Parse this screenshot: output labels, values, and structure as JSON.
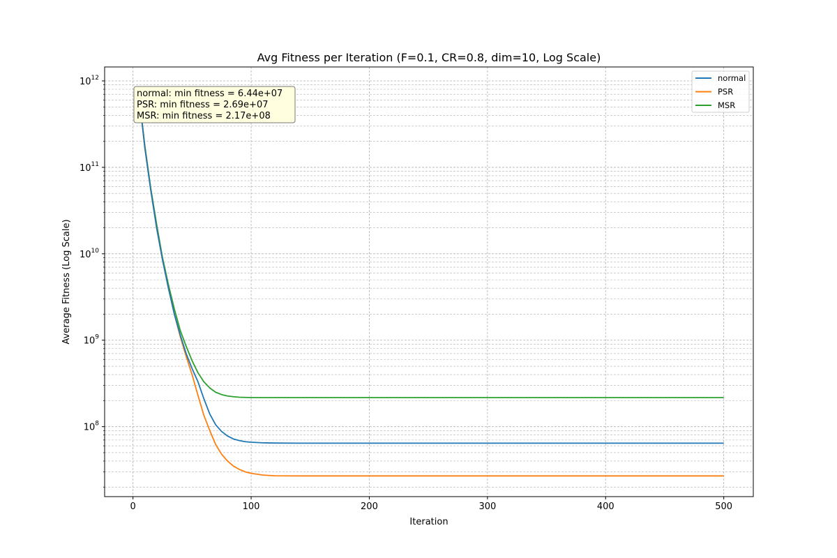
{
  "chart_data": {
    "type": "line",
    "title": "Avg Fitness per Iteration (F=0.1, CR=0.8, dim=10, Log Scale)",
    "xlabel": "Iteration",
    "ylabel": "Average Fitness (Log Scale)",
    "xlim": [
      -24,
      525
    ],
    "ylim": [
      15500000,
      1450000000000
    ],
    "yscale": "log",
    "grid": true,
    "legend_position": "top-right",
    "x_ticks": [
      0,
      100,
      200,
      300,
      400,
      500
    ],
    "y_ticks": [
      {
        "value": 100000000,
        "base": "10",
        "exp": "8"
      },
      {
        "value": 1000000000,
        "base": "10",
        "exp": "9"
      },
      {
        "value": 10000000000,
        "base": "10",
        "exp": "10"
      },
      {
        "value": 100000000000,
        "base": "10",
        "exp": "11"
      },
      {
        "value": 1000000000000,
        "base": "10",
        "exp": "12"
      }
    ],
    "series": [
      {
        "name": "normal",
        "color": "#1f77b4",
        "points": [
          [
            5,
            700000000000
          ],
          [
            10,
            170000000000
          ],
          [
            15,
            55000000000
          ],
          [
            20,
            20000000000
          ],
          [
            25,
            8500000000
          ],
          [
            30,
            4000000000
          ],
          [
            35,
            2000000000
          ],
          [
            40,
            1150000000
          ],
          [
            45,
            700000000
          ],
          [
            50,
            470000000
          ],
          [
            55,
            330000000
          ],
          [
            60,
            210000000
          ],
          [
            65,
            140000000
          ],
          [
            70,
            105000000
          ],
          [
            75,
            88000000
          ],
          [
            80,
            78000000
          ],
          [
            85,
            72000000
          ],
          [
            90,
            69000000
          ],
          [
            95,
            67000000
          ],
          [
            100,
            66000000
          ],
          [
            110,
            65000000
          ],
          [
            120,
            64600000
          ],
          [
            140,
            64400000
          ],
          [
            200,
            64400000
          ],
          [
            300,
            64400000
          ],
          [
            400,
            64400000
          ],
          [
            500,
            64400000
          ]
        ]
      },
      {
        "name": "PSR",
        "color": "#ff7f0e",
        "points": [
          [
            5,
            700000000000
          ],
          [
            10,
            170000000000
          ],
          [
            15,
            55000000000
          ],
          [
            20,
            20000000000
          ],
          [
            25,
            8500000000
          ],
          [
            30,
            4000000000
          ],
          [
            35,
            2000000000
          ],
          [
            40,
            1100000000
          ],
          [
            45,
            650000000
          ],
          [
            50,
            400000000
          ],
          [
            55,
            230000000
          ],
          [
            60,
            135000000
          ],
          [
            65,
            90000000
          ],
          [
            70,
            62000000
          ],
          [
            75,
            48000000
          ],
          [
            80,
            40000000
          ],
          [
            85,
            35000000
          ],
          [
            90,
            32000000
          ],
          [
            95,
            30000000
          ],
          [
            100,
            28800000
          ],
          [
            110,
            27500000
          ],
          [
            120,
            27000000
          ],
          [
            140,
            26900000
          ],
          [
            200,
            26900000
          ],
          [
            300,
            26900000
          ],
          [
            400,
            26900000
          ],
          [
            500,
            26900000
          ]
        ]
      },
      {
        "name": "MSR",
        "color": "#2ca02c",
        "points": [
          [
            5,
            700000000000
          ],
          [
            10,
            180000000000
          ],
          [
            15,
            58000000000
          ],
          [
            20,
            22000000000
          ],
          [
            25,
            9000000000
          ],
          [
            30,
            4400000000
          ],
          [
            35,
            2300000000
          ],
          [
            40,
            1300000000
          ],
          [
            45,
            850000000
          ],
          [
            50,
            580000000
          ],
          [
            55,
            420000000
          ],
          [
            60,
            330000000
          ],
          [
            65,
            280000000
          ],
          [
            70,
            250000000
          ],
          [
            75,
            235000000
          ],
          [
            80,
            226000000
          ],
          [
            85,
            222000000
          ],
          [
            90,
            219000000
          ],
          [
            100,
            217000000
          ],
          [
            120,
            217000000
          ],
          [
            200,
            217000000
          ],
          [
            300,
            217000000
          ],
          [
            400,
            217000000
          ],
          [
            500,
            217000000
          ]
        ]
      }
    ],
    "annotation": {
      "lines": [
        "normal: min fitness = 6.44e+07",
        "PSR: min fitness = 2.69e+07",
        "MSR: min fitness = 2.17e+08"
      ],
      "background": "#ffffe0"
    }
  }
}
